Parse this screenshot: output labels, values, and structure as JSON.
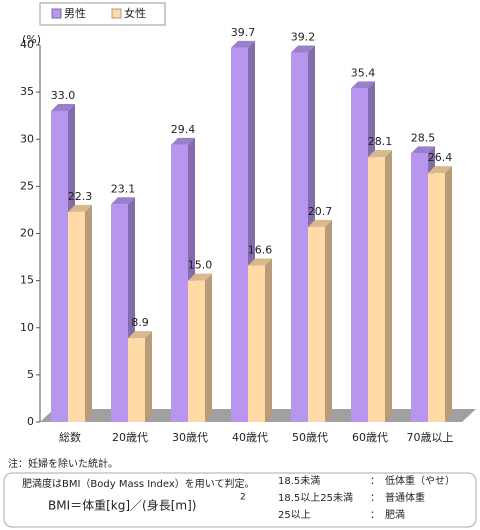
{
  "chart_data": {
    "type": "bar3d",
    "y_label": "(%)",
    "categories": [
      "総数",
      "20歳代",
      "30歳代",
      "40歳代",
      "50歳代",
      "60歳代",
      "70歳以上"
    ],
    "series": [
      {
        "name": "男性",
        "color": "#b895ee",
        "values": [
          33.0,
          23.1,
          29.4,
          39.7,
          39.2,
          35.4,
          28.5
        ],
        "value_labels": [
          "33.0",
          "23.1",
          "29.4",
          "39.7",
          "39.2",
          "35.4",
          "28.5"
        ]
      },
      {
        "name": "女性",
        "color": "#ffd9a6",
        "values": [
          22.3,
          8.9,
          15.0,
          16.6,
          20.7,
          28.1,
          26.4
        ],
        "value_labels": [
          "22.3",
          "8.9",
          "15.0",
          "16.6",
          "20.7",
          "28.1",
          "26.4"
        ]
      }
    ],
    "ylim": [
      0,
      40
    ],
    "yticks": [
      0,
      5,
      10,
      15,
      20,
      25,
      30,
      35,
      40
    ],
    "grid": false
  },
  "notes": {
    "footnote": "注：妊婦を除いた統計。",
    "bmi_text": "肥満度はBMI（Body Mass Index）を用いて判定。",
    "formula": "BMI＝体重[kg]／(身長[m])",
    "formula_sup": "2",
    "table": [
      [
        "18.5未満",
        "：",
        "低体重（やせ）"
      ],
      [
        "18.5以上25未満",
        "：",
        "普通体重"
      ],
      [
        "25以上",
        "：",
        "肥満"
      ]
    ]
  }
}
